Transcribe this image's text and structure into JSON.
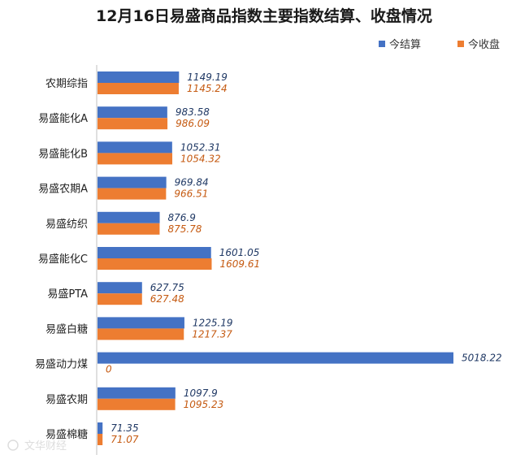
{
  "chart_data": {
    "type": "bar",
    "orientation": "horizontal",
    "title": "12月16日易盛商品指数主要指数结算、收盘情况",
    "categories": [
      "农期综指",
      "易盛能化A",
      "易盛能化B",
      "易盛农期A",
      "易盛纺织",
      "易盛能化C",
      "易盛PTA",
      "易盛白糖",
      "易盛动力煤",
      "易盛农期",
      "易盛棉糖"
    ],
    "series": [
      {
        "name": "今结算",
        "color": "#4472c4",
        "values": [
          1149.19,
          983.58,
          1052.31,
          969.84,
          876.9,
          1601.05,
          627.75,
          1225.19,
          5018.22,
          1097.9,
          71.35
        ]
      },
      {
        "name": "今收盘",
        "color": "#ed7d31",
        "values": [
          1145.24,
          986.09,
          1054.32,
          966.51,
          875.78,
          1609.61,
          627.48,
          1217.37,
          0,
          1095.23,
          71.07
        ]
      }
    ],
    "value_labels": [
      [
        "1149.19",
        "983.58",
        "1052.31",
        "969.84",
        "876.9",
        "1601.05",
        "627.75",
        "1225.19",
        "5018.22",
        "1097.9",
        "71.35"
      ],
      [
        "1145.24",
        "986.09",
        "1054.32",
        "966.51",
        "875.78",
        "1609.61",
        "627.48",
        "1217.37",
        "0",
        "1095.23",
        "71.07"
      ]
    ],
    "xlim": [
      0,
      5018.22
    ],
    "grid": false,
    "legend_position": "top-right",
    "label_colors": [
      "#1f3864",
      "#c55a11"
    ]
  },
  "watermark": "文华财经"
}
